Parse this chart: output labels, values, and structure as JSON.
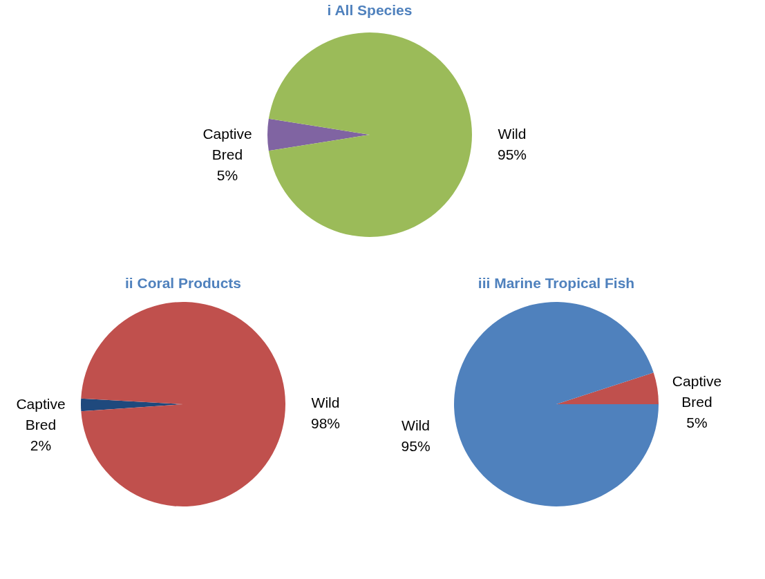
{
  "chart_data": [
    {
      "type": "pie",
      "title": "i All Species",
      "categories": [
        "Captive Bred",
        "Wild"
      ],
      "values": [
        5,
        95
      ],
      "colors": [
        "#8064a2",
        "#9bbb59"
      ],
      "value_labels": [
        "5%",
        "95%"
      ],
      "legend": false
    },
    {
      "type": "pie",
      "title": "ii Coral Products",
      "categories": [
        "Captive Bred",
        "Wild"
      ],
      "values": [
        2,
        98
      ],
      "colors": [
        "#1f497d",
        "#c0504d"
      ],
      "value_labels": [
        "2%",
        "98%"
      ],
      "legend": false
    },
    {
      "type": "pie",
      "title": "iii Marine Tropical Fish",
      "categories": [
        "Captive Bred",
        "Wild"
      ],
      "values": [
        5,
        95
      ],
      "colors": [
        "#c0504d",
        "#4f81bd"
      ],
      "value_labels": [
        "5%",
        "95%"
      ],
      "legend": false
    }
  ]
}
